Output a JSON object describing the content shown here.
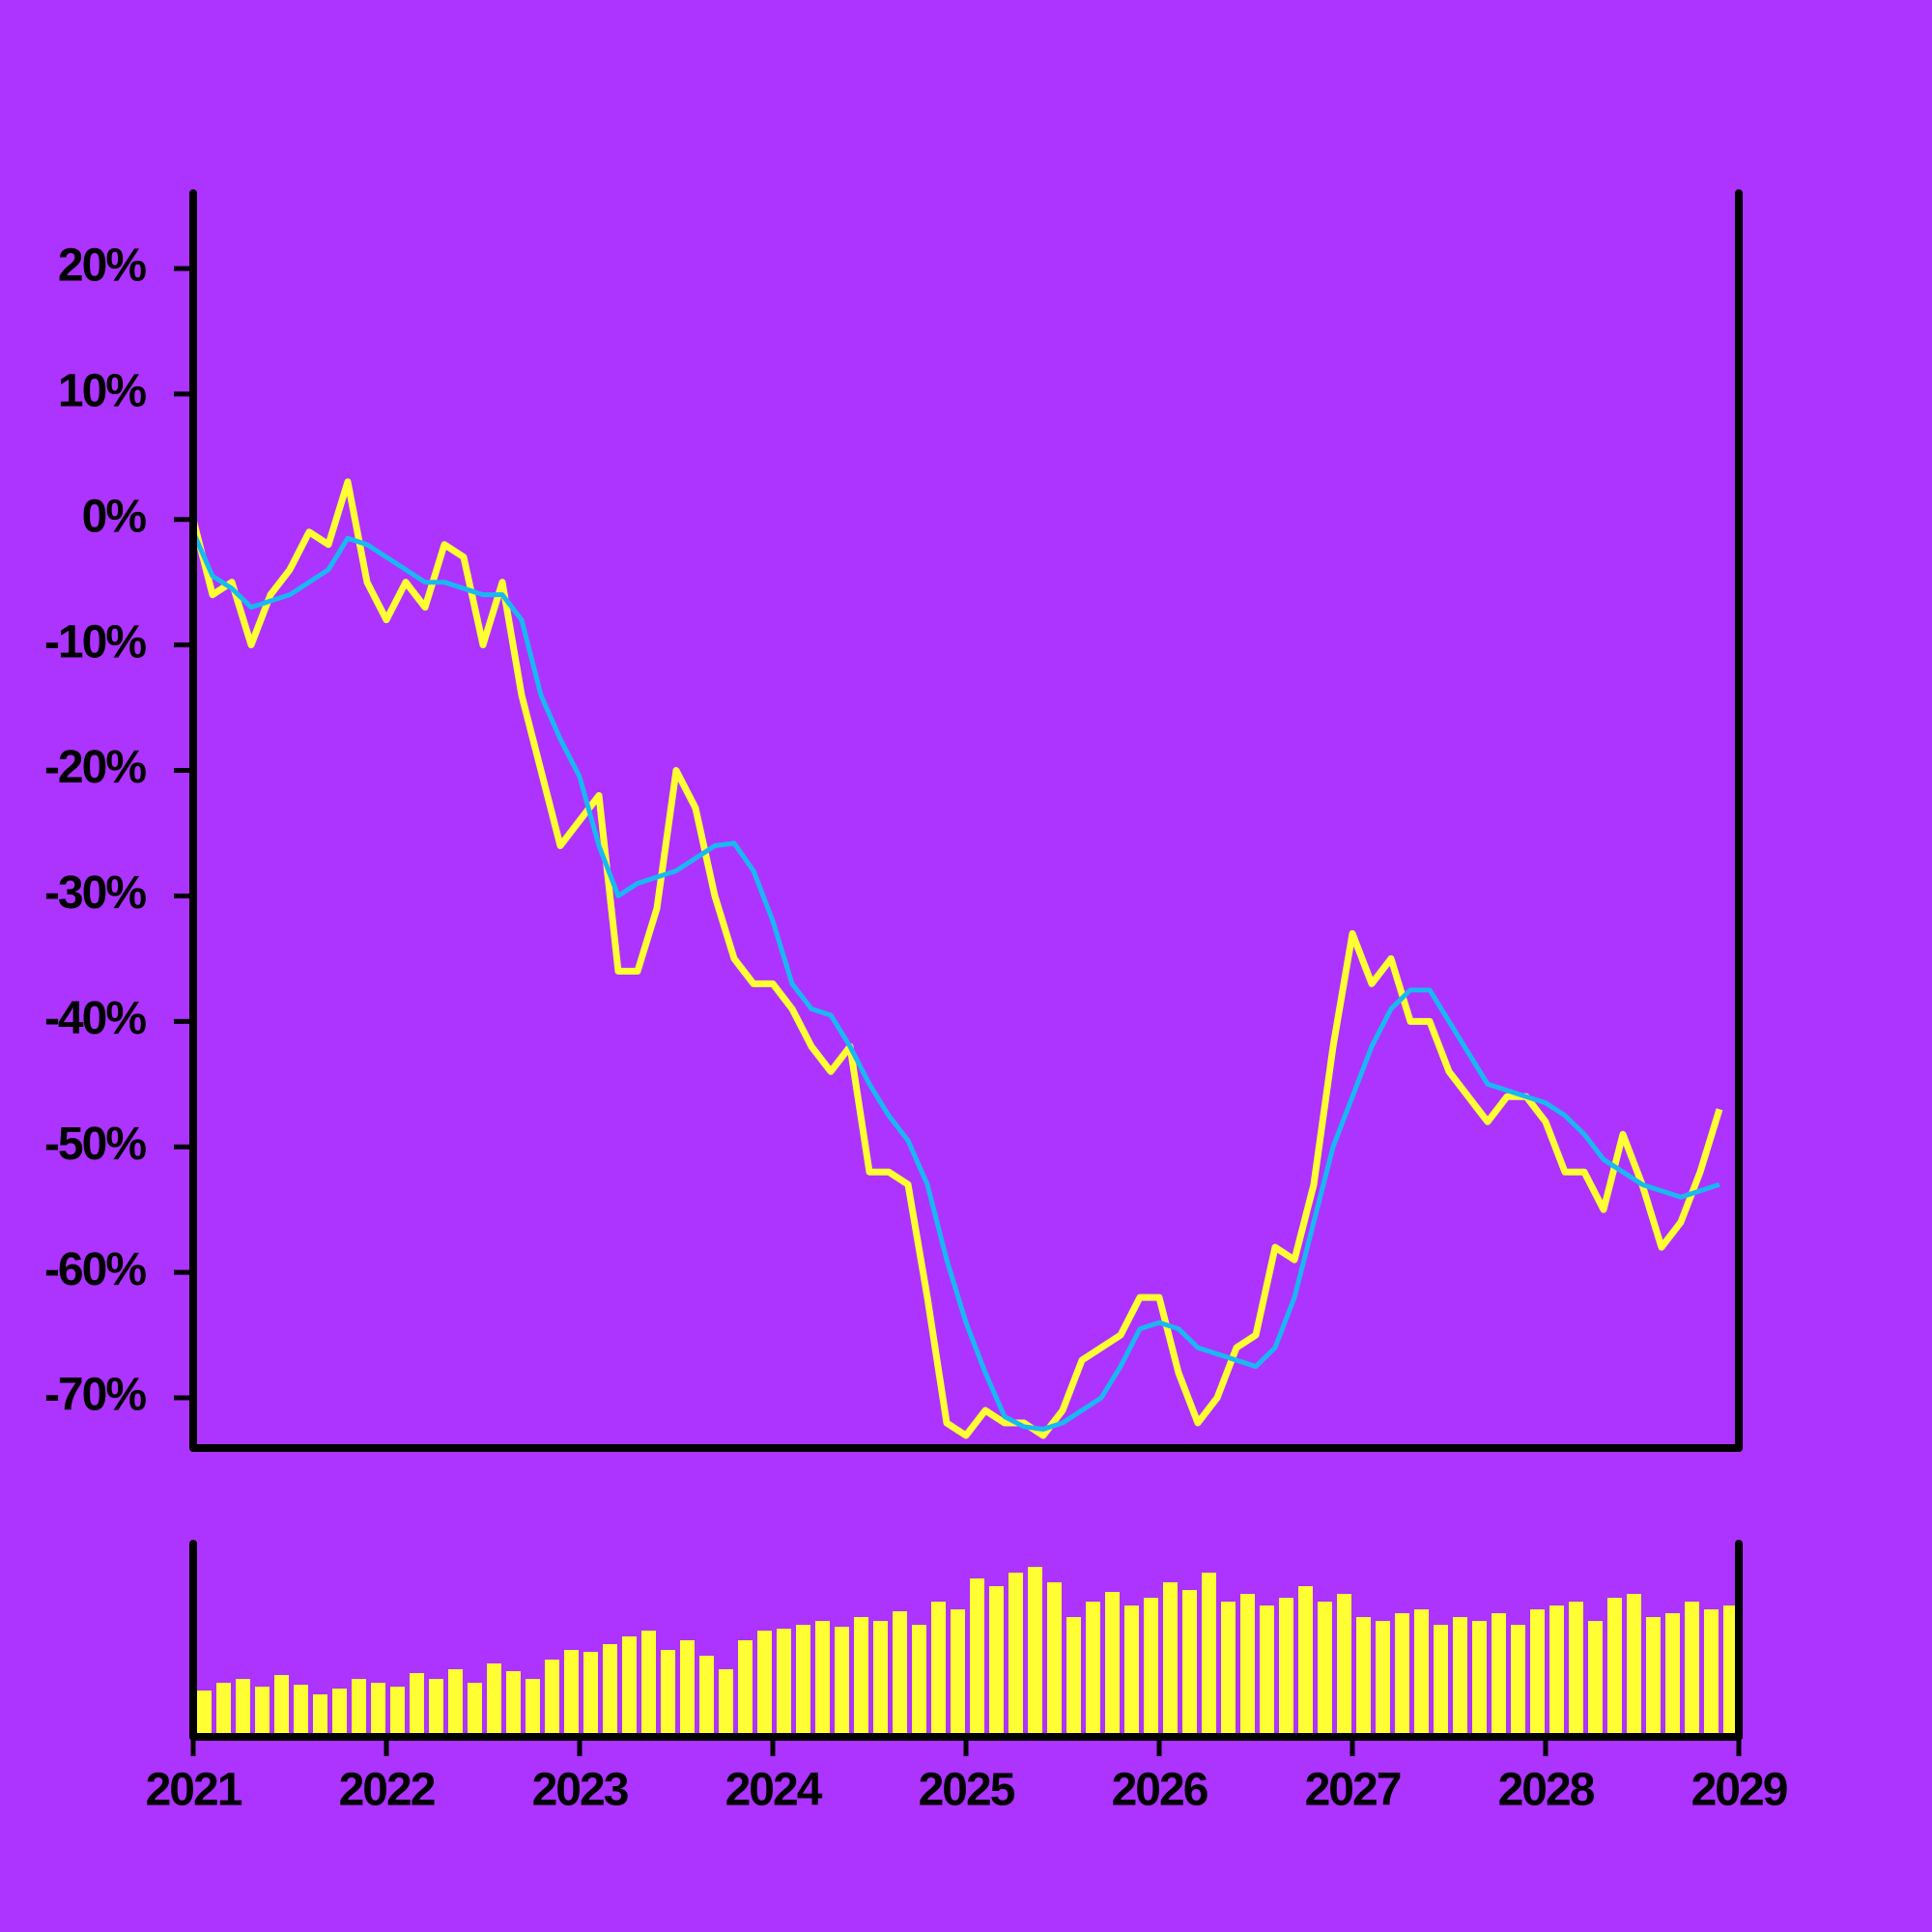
{
  "chart_data": [
    {
      "type": "line",
      "x": [
        2021.0,
        2021.1,
        2021.2,
        2021.3,
        2021.4,
        2021.5,
        2021.6,
        2021.7,
        2021.8,
        2021.9,
        2022.0,
        2022.1,
        2022.2,
        2022.3,
        2022.4,
        2022.5,
        2022.6,
        2022.7,
        2022.8,
        2022.9,
        2023.0,
        2023.1,
        2023.2,
        2023.3,
        2023.4,
        2023.5,
        2023.6,
        2023.7,
        2023.8,
        2023.9,
        2024.0,
        2024.1,
        2024.2,
        2024.3,
        2024.4,
        2024.5,
        2024.6,
        2024.7,
        2024.8,
        2024.9,
        2025.0,
        2025.1,
        2025.2,
        2025.3,
        2025.4,
        2025.5,
        2025.6,
        2025.7,
        2025.8,
        2025.9,
        2026.0,
        2026.1,
        2026.2,
        2026.3,
        2026.4,
        2026.5,
        2026.6,
        2026.7,
        2026.8,
        2026.9,
        2027.0,
        2027.1,
        2027.2,
        2027.3,
        2027.4,
        2027.5,
        2027.6,
        2027.7,
        2027.8,
        2027.9,
        2028.0,
        2028.1,
        2028.2,
        2028.3,
        2028.4,
        2028.5,
        2028.6,
        2028.7,
        2028.8,
        2028.9
      ],
      "series": [
        {
          "color": "#ffff33",
          "values": [
            0,
            -6,
            -5,
            -10,
            -6,
            -4,
            -1,
            -2,
            3,
            -5,
            -8,
            -5,
            -7,
            -2,
            -3,
            -10,
            -5,
            -14,
            -20,
            -26,
            -24,
            -22,
            -36,
            -36,
            -31,
            -20,
            -23,
            -30,
            -35,
            -37,
            -37,
            -39,
            -42,
            -44,
            -42,
            -52,
            -52,
            -53,
            -62,
            -72,
            -73,
            -71,
            -72,
            -72,
            -73,
            -71,
            -67,
            -66,
            -65,
            -62,
            -62,
            -68,
            -72,
            -70,
            -66,
            -65,
            -58,
            -59,
            -53,
            -42,
            -33,
            -37,
            -35,
            -40,
            -40,
            -44,
            -46,
            -48,
            -46,
            -46,
            -48,
            -52,
            -52,
            -55,
            -49,
            -53,
            -58,
            -56,
            -52,
            -47
          ]
        },
        {
          "color": "#1ab8f0",
          "values": [
            -1,
            -4.5,
            -5.5,
            -7,
            -6.5,
            -6,
            -5,
            -4,
            -1.5,
            -2,
            -3,
            -4,
            -5,
            -5,
            -5.5,
            -6,
            -6,
            -8,
            -14,
            -17.5,
            -20.5,
            -26,
            -30,
            -29,
            -28.5,
            -28,
            -27,
            -26,
            -25.8,
            -28,
            -32,
            -37,
            -39,
            -39.5,
            -42,
            -45,
            -47.5,
            -49.5,
            -53,
            -59,
            -64,
            -68,
            -71.5,
            -72.3,
            -72.5,
            -72,
            -71,
            -70,
            -67.5,
            -64.5,
            -64,
            -64.5,
            -66,
            -66.5,
            -67,
            -67.5,
            -66,
            -62,
            -56,
            -50,
            -46,
            -42,
            -39,
            -37.5,
            -37.5,
            -40,
            -42.5,
            -45,
            -45.5,
            -46,
            -46.5,
            -47.5,
            -49,
            -51,
            -52,
            -53,
            -53.5,
            -54,
            -53.5,
            -53
          ]
        }
      ],
      "xlim": [
        2021,
        2029
      ],
      "ylim": [
        -74,
        26
      ],
      "yticks": [
        {
          "value": 20,
          "label": "20%"
        },
        {
          "value": 10,
          "label": "10%"
        },
        {
          "value": 0,
          "label": "0%"
        },
        {
          "value": -10,
          "label": "-10%"
        },
        {
          "value": -20,
          "label": "-20%"
        },
        {
          "value": -30,
          "label": "-30%"
        },
        {
          "value": -40,
          "label": "-40%"
        },
        {
          "value": -50,
          "label": "-50%"
        },
        {
          "value": -60,
          "label": "-60%"
        },
        {
          "value": -70,
          "label": "-70%"
        }
      ]
    },
    {
      "type": "bar",
      "x": [
        2021.0,
        2021.1,
        2021.2,
        2021.3,
        2021.4,
        2021.5,
        2021.6,
        2021.7,
        2021.8,
        2021.9,
        2022.0,
        2022.1,
        2022.2,
        2022.3,
        2022.4,
        2022.5,
        2022.6,
        2022.7,
        2022.8,
        2022.9,
        2023.0,
        2023.1,
        2023.2,
        2023.3,
        2023.4,
        2023.5,
        2023.6,
        2023.7,
        2023.8,
        2023.9,
        2024.0,
        2024.1,
        2024.2,
        2024.3,
        2024.4,
        2024.5,
        2024.6,
        2024.7,
        2024.8,
        2024.9,
        2025.0,
        2025.1,
        2025.2,
        2025.3,
        2025.4,
        2025.5,
        2025.6,
        2025.7,
        2025.8,
        2025.9,
        2026.0,
        2026.1,
        2026.2,
        2026.3,
        2026.4,
        2026.5,
        2026.6,
        2026.7,
        2026.8,
        2026.9,
        2027.0,
        2027.1,
        2027.2,
        2027.3,
        2027.4,
        2027.5,
        2027.6,
        2027.7,
        2027.8,
        2027.9,
        2028.0,
        2028.1,
        2028.2,
        2028.3,
        2028.4,
        2028.5,
        2028.6,
        2028.7,
        2028.8,
        2028.9
      ],
      "values": [
        24,
        28,
        30,
        26,
        32,
        27,
        22,
        25,
        30,
        28,
        26,
        33,
        30,
        35,
        28,
        38,
        34,
        30,
        40,
        45,
        44,
        48,
        52,
        55,
        45,
        50,
        42,
        35,
        50,
        55,
        56,
        58,
        60,
        57,
        62,
        60,
        65,
        58,
        70,
        66,
        82,
        78,
        85,
        88,
        80,
        62,
        70,
        75,
        68,
        72,
        80,
        76,
        85,
        70,
        74,
        68,
        72,
        78,
        70,
        74,
        62,
        60,
        64,
        66,
        58,
        62,
        60,
        64,
        58,
        66,
        68,
        70,
        60,
        72,
        74,
        62,
        64,
        70,
        66,
        68
      ],
      "color": "#ffff33",
      "xlim": [
        2021,
        2029
      ],
      "ylim": [
        0,
        100
      ],
      "xticks": [
        2021,
        2022,
        2023,
        2024,
        2025,
        2026,
        2027,
        2028,
        2029
      ]
    }
  ]
}
